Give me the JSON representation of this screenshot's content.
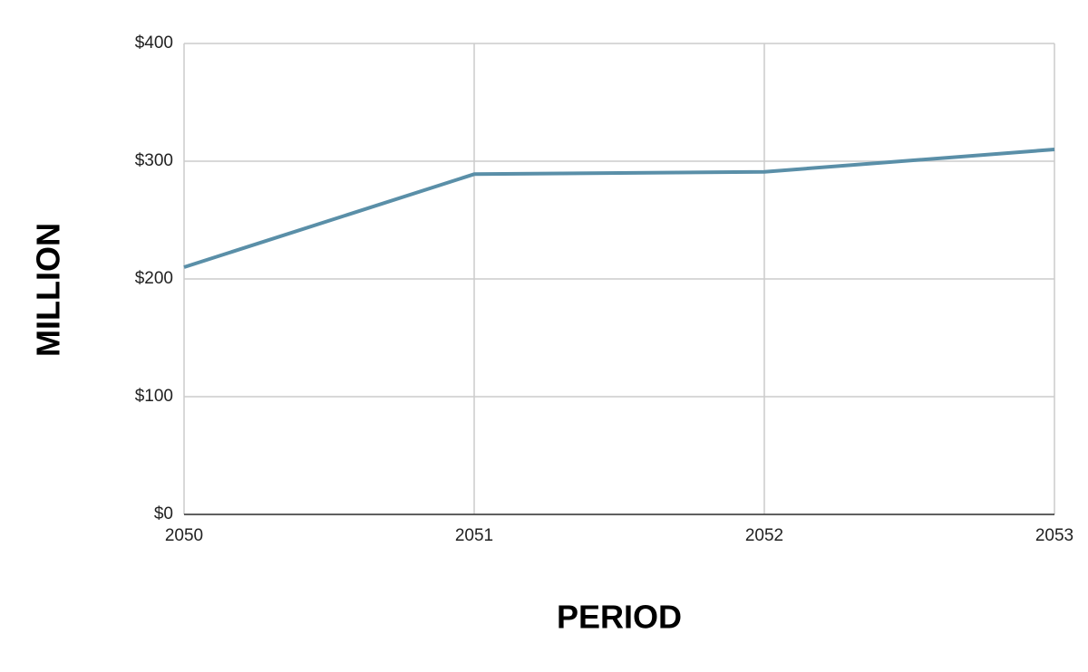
{
  "chart_data": {
    "type": "line",
    "x_label": "PERIOD",
    "y_label": "MILLION",
    "x": [
      2050,
      2051,
      2052,
      2053
    ],
    "values": [
      210,
      289,
      291,
      310
    ],
    "color": "#5a8fa8",
    "xlim": [
      2050,
      2053
    ],
    "xticks": [
      2050,
      2051,
      2052,
      2053
    ],
    "ylim": [
      0,
      400
    ],
    "yticks": [
      {
        "value": 0,
        "label": "$0"
      },
      {
        "value": 100,
        "label": "$100"
      },
      {
        "value": 200,
        "label": "$200"
      },
      {
        "value": 300,
        "label": "$300"
      },
      {
        "value": 400,
        "label": "$400"
      }
    ],
    "grid": true
  }
}
